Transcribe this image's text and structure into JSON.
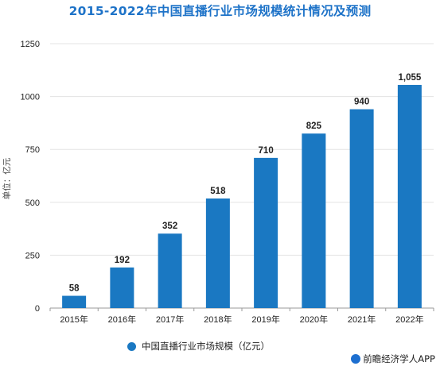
{
  "chart_data": {
    "type": "bar",
    "title": "2015-2022年中国直播行业市场规模统计情况及预测",
    "ylabel": "单位：亿元",
    "categories": [
      "2015年",
      "2016年",
      "2017年",
      "2018年",
      "2019年",
      "2020年",
      "2021年",
      "2022年"
    ],
    "values": [
      58,
      192,
      352,
      518,
      710,
      825,
      940,
      1055
    ],
    "value_labels": [
      "58",
      "192",
      "352",
      "518",
      "710",
      "825",
      "940",
      "1,055"
    ],
    "yticks": [
      "0",
      "250",
      "500",
      "750",
      "1000",
      "1250"
    ],
    "ytick_values": [
      0,
      250,
      500,
      750,
      1000,
      1250
    ],
    "ylim": [
      0,
      1250
    ],
    "grid": true,
    "legend": {
      "position": "bottom-center",
      "label": "中国直播行业市场规模（亿元）"
    },
    "color": "#1a78c2"
  },
  "watermark": "前瞻经济学人APP"
}
